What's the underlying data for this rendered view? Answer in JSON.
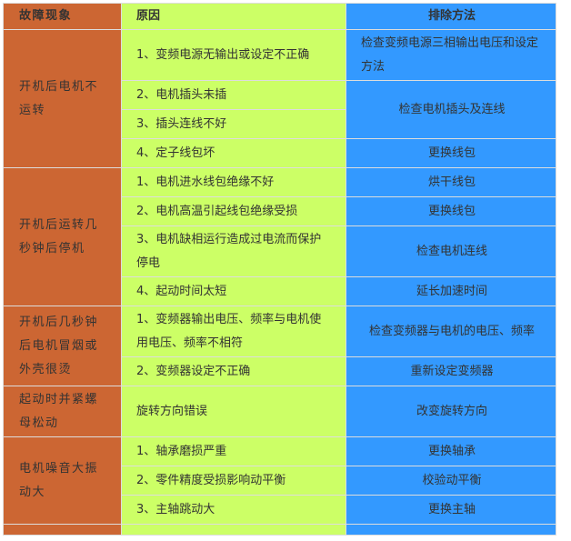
{
  "header": {
    "symptom": "故障现象",
    "cause": "原因",
    "solution": "排除方法"
  },
  "colors": {
    "symptom_bg": "#CC6633",
    "cause_bg": "#CCFF66",
    "solution_bg": "#3399FF"
  },
  "groups": [
    {
      "symptom": "开机后电机不运转",
      "rows": [
        {
          "cause": "1、变频电源无输出或设定不正确",
          "solution": "检查变频电源三相输出电压和设定方法",
          "h": 57,
          "span": 1,
          "left": true
        },
        {
          "cause": "2、电机插头未插",
          "solution": "检查电机插头及连线",
          "h": 33,
          "span": 2
        },
        {
          "cause": "3、插头连线不好",
          "h": 33
        },
        {
          "cause": "4、定子线包坏",
          "solution": "更换线包",
          "h": 33,
          "span": 1
        }
      ]
    },
    {
      "symptom": "开机后运转几秒钟后停机",
      "rows": [
        {
          "cause": "1、电机进水线包绝缘不好",
          "solution": "烘干线包",
          "h": 33,
          "span": 1
        },
        {
          "cause": "2、电机高温引起线包绝缘受损",
          "solution": "更换线包",
          "h": 33,
          "span": 1
        },
        {
          "cause": "3、电机缺相运行造成过电流而保护停电",
          "solution": "检查电机连线",
          "h": 57,
          "span": 1
        },
        {
          "cause": "4、起动时间太短",
          "solution": "延长加速时间",
          "h": 33,
          "span": 1
        }
      ]
    },
    {
      "symptom": "开机后几秒钟后电机冒烟或外壳很烫",
      "rows": [
        {
          "cause": "1、变频器输出电压、频率与电机使用电压、频率不相符",
          "solution": "检查变频器与电机的电压、频率",
          "h": 57,
          "span": 1
        },
        {
          "cause": "2、变频器设定不正确",
          "solution": "重新设定变频器",
          "h": 33,
          "span": 1
        }
      ]
    },
    {
      "symptom": "起动时并紧螺母松动",
      "rows": [
        {
          "cause": "旋转方向错误",
          "solution": "改变旋转方向",
          "h": 57,
          "span": 1
        }
      ]
    },
    {
      "symptom": "电机噪音大振动大",
      "rows": [
        {
          "cause": "1、轴承磨损严重",
          "solution": "更换轴承",
          "h": 33,
          "span": 1
        },
        {
          "cause": "2、零件精度受损影响动平衡",
          "solution": "校验动平衡",
          "h": 33,
          "span": 1
        },
        {
          "cause": "3、主轴跳动大",
          "solution": "更换主轴",
          "h": 33,
          "span": 1
        }
      ]
    }
  ]
}
